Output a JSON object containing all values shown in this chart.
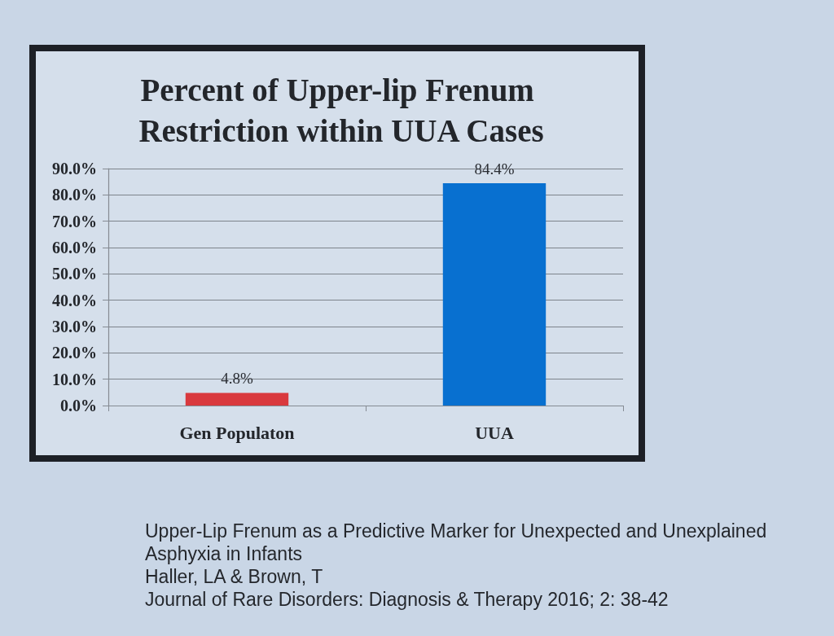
{
  "chart_data": {
    "type": "bar",
    "title": "Percent of Upper-lip Frenum Restriction within UUA Cases",
    "categories": [
      "Gen Populaton",
      "UUA"
    ],
    "values": [
      4.8,
      84.4
    ],
    "colors": [
      "#d9393e",
      "#0870d0"
    ],
    "value_labels": [
      "4.8%",
      "84.4%"
    ],
    "ylim": [
      0,
      90
    ],
    "yticks": [
      {
        "value": 0,
        "label": "0.0%"
      },
      {
        "value": 10,
        "label": "10.0%"
      },
      {
        "value": 20,
        "label": "20.0%"
      },
      {
        "value": 30,
        "label": "30.0%"
      },
      {
        "value": 40,
        "label": "40.0%"
      },
      {
        "value": 50,
        "label": "50.0%"
      },
      {
        "value": 60,
        "label": "60.0%"
      },
      {
        "value": 70,
        "label": "70.0%"
      },
      {
        "value": 80,
        "label": "80.0%"
      },
      {
        "value": 90,
        "label": "90.0%"
      }
    ],
    "grid": "y",
    "annotations": [
      "Upper-Lip Frenum as a Predictive Marker for Unexpected and Unexplained Asphyxia in Infants",
      "Haller, LA & Brown, T",
      "Journal of Rare Disorders: Diagnosis & Therapy 2016; 2: 38-42"
    ]
  }
}
